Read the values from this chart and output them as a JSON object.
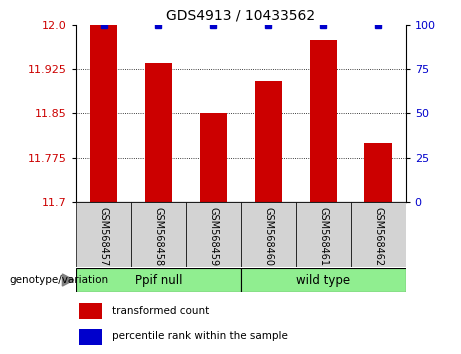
{
  "title": "GDS4913 / 10433562",
  "samples": [
    "GSM568457",
    "GSM568458",
    "GSM568459",
    "GSM568460",
    "GSM568461",
    "GSM568462"
  ],
  "red_values": [
    12.0,
    11.935,
    11.85,
    11.905,
    11.975,
    11.8
  ],
  "blue_values": [
    100,
    100,
    100,
    100,
    100,
    100
  ],
  "ylim_left": [
    11.7,
    12.0
  ],
  "ylim_right": [
    0,
    100
  ],
  "yticks_left": [
    11.7,
    11.775,
    11.85,
    11.925,
    12.0
  ],
  "yticks_right": [
    0,
    25,
    50,
    75,
    100
  ],
  "groups": [
    {
      "label": "Ppif null",
      "color": "#90ee90",
      "indices": [
        0,
        1,
        2
      ]
    },
    {
      "label": "wild type",
      "color": "#90ee90",
      "indices": [
        3,
        4,
        5
      ]
    }
  ],
  "group_label": "genotype/variation",
  "legend_red": "transformed count",
  "legend_blue": "percentile rank within the sample",
  "red_color": "#cc0000",
  "blue_color": "#0000cc",
  "bar_width": 0.5,
  "tick_label_color_left": "#cc0000",
  "tick_label_color_right": "#0000cc",
  "bg_gray": "#d3d3d3",
  "bg_green": "#90ee90"
}
